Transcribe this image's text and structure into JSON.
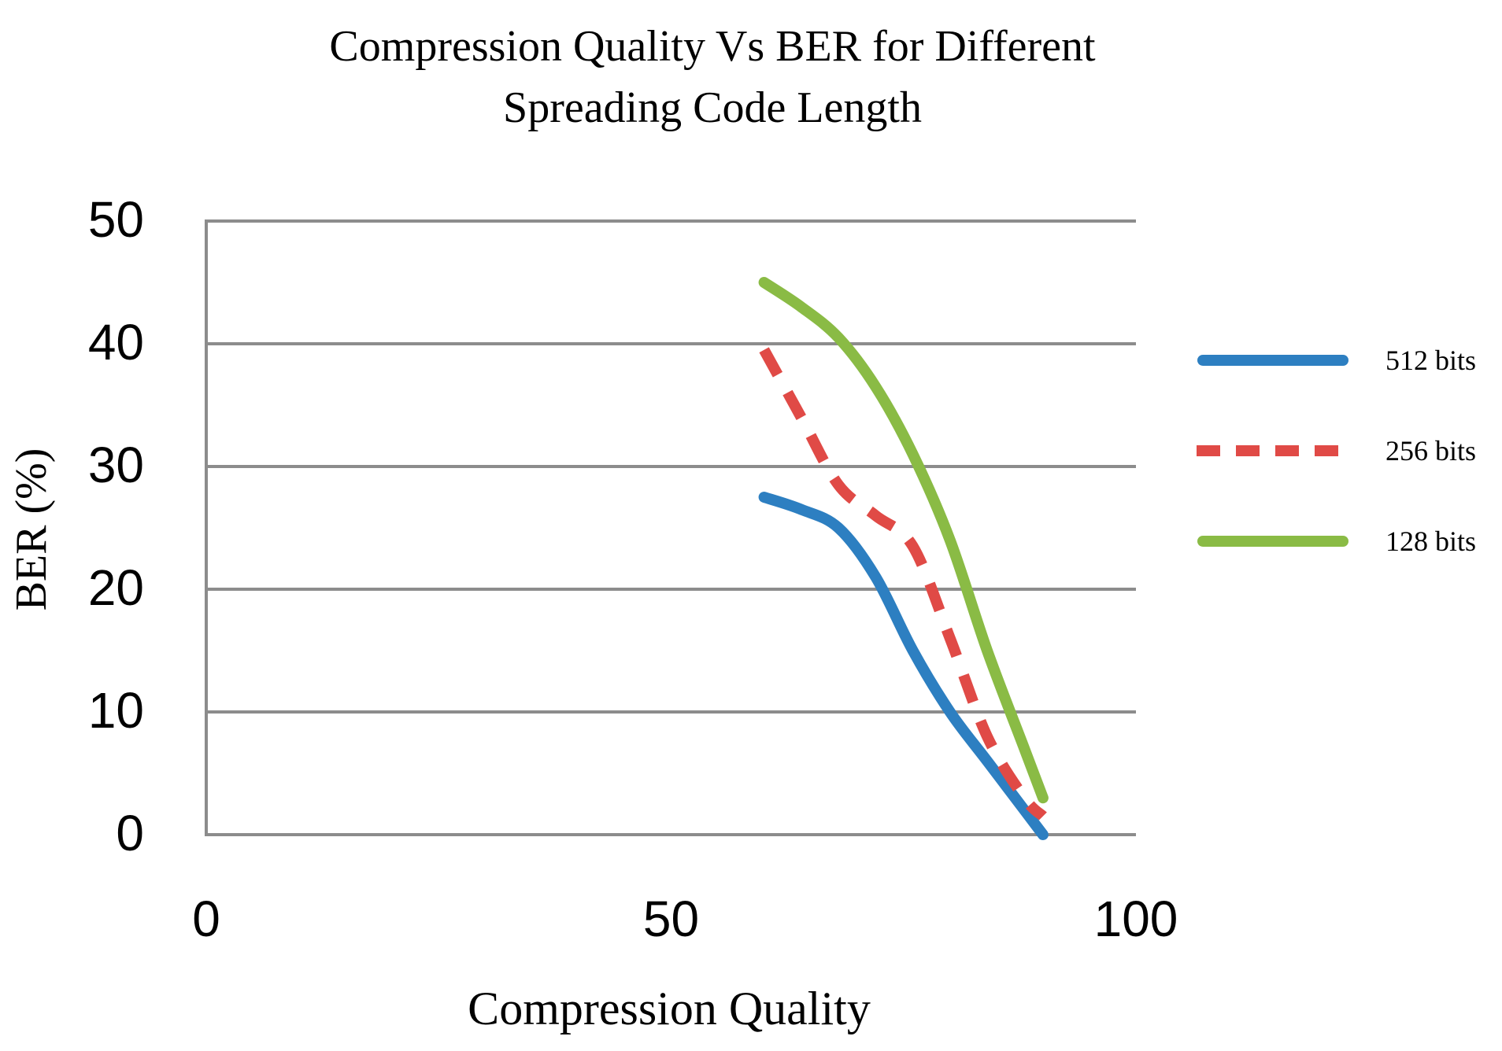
{
  "chart_data": {
    "type": "line",
    "title_lines": [
      "Compression Quality Vs BER for Different",
      "Spreading Code Length"
    ],
    "xlabel": "Compression Quality",
    "ylabel": "BER (%)",
    "xlim": [
      0,
      100
    ],
    "ylim": [
      0,
      50
    ],
    "x_ticks": [
      "0",
      "50",
      "100"
    ],
    "y_ticks": [
      "0",
      "10",
      "20",
      "30",
      "40",
      "50"
    ],
    "grid": true,
    "legend_position": "right",
    "series": [
      {
        "name": "512 bits",
        "color": "#2D7FC1",
        "style": "solid",
        "x": [
          60,
          64,
          68,
          72,
          76,
          80,
          84,
          88,
          90
        ],
        "y": [
          27.5,
          26.5,
          25,
          21,
          15,
          10,
          6,
          2,
          0
        ]
      },
      {
        "name": "256 bits",
        "color": "#E04A46",
        "style": "dashed",
        "x": [
          60,
          64,
          68,
          72,
          76,
          80,
          84,
          88,
          90
        ],
        "y": [
          39.5,
          34,
          28.5,
          26,
          23.5,
          16,
          8,
          3,
          1.5
        ]
      },
      {
        "name": "128 bits",
        "color": "#8ABB45",
        "style": "solid",
        "x": [
          60,
          64,
          68,
          72,
          76,
          80,
          84,
          88,
          90
        ],
        "y": [
          45,
          43,
          40.5,
          36.5,
          31,
          24,
          15,
          7,
          3
        ]
      }
    ]
  }
}
